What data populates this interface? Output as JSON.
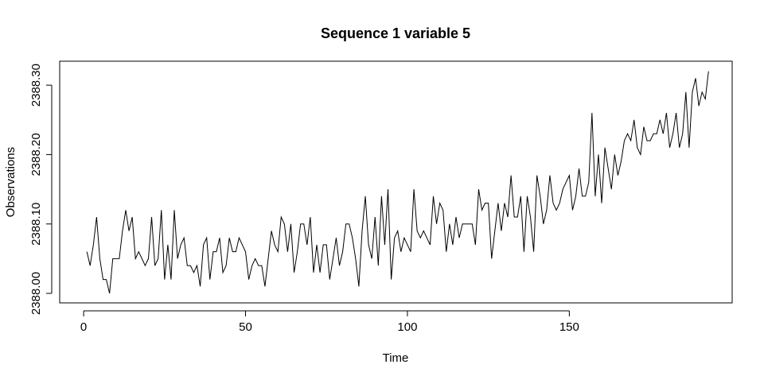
{
  "chart_data": {
    "type": "line",
    "title": "Sequence 1 variable 5",
    "x_label": "Time",
    "y_label": "Observations",
    "x": [
      1,
      2,
      3,
      4,
      5,
      6,
      7,
      8,
      9,
      10,
      11,
      12,
      13,
      14,
      15,
      16,
      17,
      18,
      19,
      20,
      21,
      22,
      23,
      24,
      25,
      26,
      27,
      28,
      29,
      30,
      31,
      32,
      33,
      34,
      35,
      36,
      37,
      38,
      39,
      40,
      41,
      42,
      43,
      44,
      45,
      46,
      47,
      48,
      49,
      50,
      51,
      52,
      53,
      54,
      55,
      56,
      57,
      58,
      59,
      60,
      61,
      62,
      63,
      64,
      65,
      66,
      67,
      68,
      69,
      70,
      71,
      72,
      73,
      74,
      75,
      76,
      77,
      78,
      79,
      80,
      81,
      82,
      83,
      84,
      85,
      86,
      87,
      88,
      89,
      90,
      91,
      92,
      93,
      94,
      95,
      96,
      97,
      98,
      99,
      100,
      101,
      102,
      103,
      104,
      105,
      106,
      107,
      108,
      109,
      110,
      111,
      112,
      113,
      114,
      115,
      116,
      117,
      118,
      119,
      120,
      121,
      122,
      123,
      124,
      125,
      126,
      127,
      128,
      129,
      130,
      131,
      132,
      133,
      134,
      135,
      136,
      137,
      138,
      139,
      140,
      141,
      142,
      143,
      144,
      145,
      146,
      147,
      148,
      149,
      150,
      151,
      152,
      153,
      154,
      155,
      156,
      157,
      158,
      159,
      160,
      161,
      162,
      163,
      164,
      165,
      166,
      167,
      168,
      169,
      170,
      171,
      172,
      173,
      174,
      175,
      176,
      177,
      178,
      179,
      180,
      181,
      182,
      183,
      184,
      185,
      186,
      187,
      188,
      189,
      190,
      191,
      192,
      193
    ],
    "values": [
      2388.06,
      2388.04,
      2388.07,
      2388.11,
      2388.05,
      2388.02,
      2388.02,
      2388.0,
      2388.05,
      2388.05,
      2388.05,
      2388.09,
      2388.12,
      2388.09,
      2388.11,
      2388.05,
      2388.06,
      2388.05,
      2388.04,
      2388.05,
      2388.11,
      2388.04,
      2388.05,
      2388.12,
      2388.02,
      2388.07,
      2388.02,
      2388.12,
      2388.05,
      2388.07,
      2388.08,
      2388.04,
      2388.04,
      2388.03,
      2388.04,
      2388.01,
      2388.07,
      2388.08,
      2388.02,
      2388.06,
      2388.06,
      2388.08,
      2388.03,
      2388.04,
      2388.08,
      2388.06,
      2388.06,
      2388.08,
      2388.07,
      2388.06,
      2388.02,
      2388.04,
      2388.05,
      2388.04,
      2388.04,
      2388.01,
      2388.05,
      2388.09,
      2388.07,
      2388.06,
      2388.11,
      2388.1,
      2388.06,
      2388.1,
      2388.03,
      2388.06,
      2388.1,
      2388.1,
      2388.07,
      2388.11,
      2388.03,
      2388.07,
      2388.03,
      2388.07,
      2388.07,
      2388.02,
      2388.05,
      2388.08,
      2388.04,
      2388.06,
      2388.1,
      2388.1,
      2388.08,
      2388.05,
      2388.01,
      2388.09,
      2388.14,
      2388.07,
      2388.05,
      2388.11,
      2388.04,
      2388.14,
      2388.07,
      2388.15,
      2388.02,
      2388.08,
      2388.09,
      2388.06,
      2388.08,
      2388.07,
      2388.06,
      2388.15,
      2388.09,
      2388.08,
      2388.09,
      2388.08,
      2388.07,
      2388.14,
      2388.1,
      2388.13,
      2388.12,
      2388.06,
      2388.1,
      2388.07,
      2388.11,
      2388.08,
      2388.1,
      2388.1,
      2388.1,
      2388.1,
      2388.07,
      2388.15,
      2388.12,
      2388.13,
      2388.13,
      2388.05,
      2388.09,
      2388.13,
      2388.09,
      2388.13,
      2388.11,
      2388.17,
      2388.11,
      2388.11,
      2388.14,
      2388.06,
      2388.14,
      2388.11,
      2388.06,
      2388.17,
      2388.14,
      2388.1,
      2388.12,
      2388.17,
      2388.13,
      2388.12,
      2388.13,
      2388.15,
      2388.16,
      2388.17,
      2388.12,
      2388.14,
      2388.18,
      2388.14,
      2388.14,
      2388.16,
      2388.26,
      2388.14,
      2388.2,
      2388.13,
      2388.21,
      2388.18,
      2388.15,
      2388.2,
      2388.17,
      2388.19,
      2388.22,
      2388.23,
      2388.22,
      2388.25,
      2388.21,
      2388.2,
      2388.24,
      2388.22,
      2388.22,
      2388.23,
      2388.23,
      2388.25,
      2388.23,
      2388.26,
      2388.21,
      2388.23,
      2388.26,
      2388.21,
      2388.23,
      2388.29,
      2388.21,
      2388.29,
      2388.31,
      2388.27,
      2388.29,
      2388.28,
      2388.32
    ],
    "color": "#000000",
    "xlim": [
      -7.4,
      200.3
    ],
    "xticks": [
      0,
      50,
      100,
      150
    ],
    "ylim": [
      2387.9863,
      2388.3345
    ],
    "yticks": [
      {
        "value": 2388,
        "label": "2388.00"
      },
      {
        "value": 2388.1,
        "label": "2388.10"
      },
      {
        "value": 2388.2,
        "label": "2388.20"
      },
      {
        "value": 2388.3,
        "label": "2388.30"
      }
    ]
  }
}
